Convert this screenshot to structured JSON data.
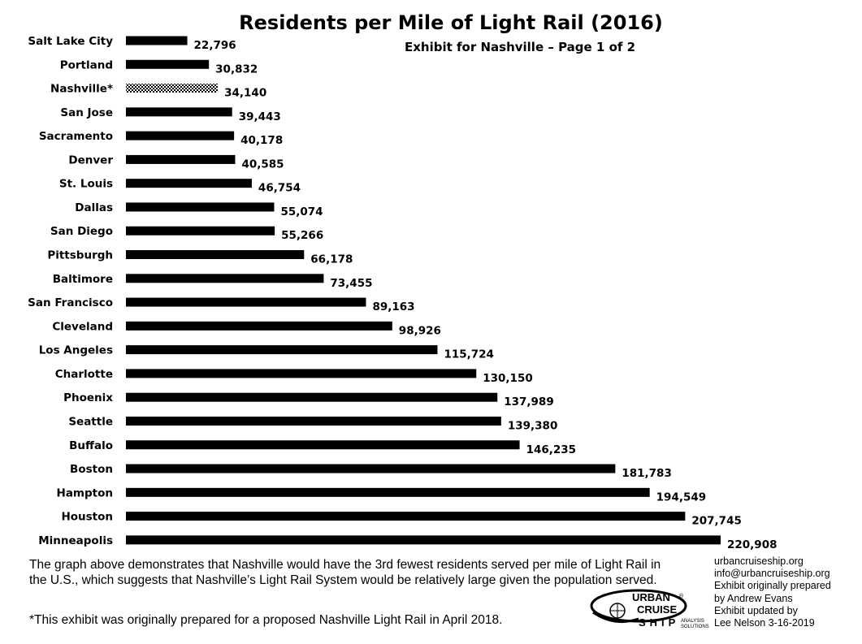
{
  "chart_data": {
    "type": "bar",
    "orientation": "horizontal",
    "title": "Residents per Mile of Light Rail (2016)",
    "subtitle": "Exhibit for Nashville – Page 1 of 2",
    "categories": [
      "Salt Lake City",
      "Portland",
      "Nashville*",
      "San Jose",
      "Sacramento",
      "Denver",
      "St. Louis",
      "Dallas",
      "San Diego",
      "Pittsburgh",
      "Baltimore",
      "San Francisco",
      "Cleveland",
      "Los Angeles",
      "Charlotte",
      "Phoenix",
      "Seattle",
      "Buffalo",
      "Boston",
      "Hampton",
      "Houston",
      "Minneapolis"
    ],
    "values": [
      22796,
      30832,
      34140,
      39443,
      40178,
      40585,
      46754,
      55074,
      55266,
      66178,
      73455,
      89163,
      98926,
      115724,
      130150,
      137989,
      139380,
      146235,
      181783,
      194549,
      207745,
      220908
    ],
    "value_labels": [
      "22,796",
      "30,832",
      "34,140",
      "39,443",
      "40,178",
      "40,585",
      "46,754",
      "55,074",
      "55,266",
      "66,178",
      "73,455",
      "89,163",
      "98,926",
      "115,724",
      "130,150",
      "137,989",
      "139,380",
      "146,235",
      "181,783",
      "194,549",
      "207,745",
      "220,908"
    ],
    "highlight_category": "Nashville*",
    "bar_color": "#000000",
    "highlight_pattern": "checkered",
    "xlim": [
      0,
      220908
    ],
    "axes_visible": false,
    "grid": false
  },
  "notes": {
    "line1": "The graph above demonstrates that Nashville would have the 3rd fewest residents served per mile of Light Rail in the U.S., which suggests that Nashville’s Light Rail System would be relatively large given the population served.",
    "line2": "*This exhibit was originally prepared for a proposed Nashville Light Rail in April 2018."
  },
  "credits": [
    "urbancruiseship.org",
    "info@urbancruiseship.org",
    "Exhibit originally prepared",
    "by Andrew Evans",
    "Exhibit updated by",
    "Lee Nelson 3-16-2019"
  ],
  "logo": {
    "words": [
      "URBAN",
      "CRUISE",
      "SHIP"
    ],
    "tag_lines": [
      "ANALYSIS",
      "SOLUTIONS"
    ],
    "registered": "®"
  }
}
